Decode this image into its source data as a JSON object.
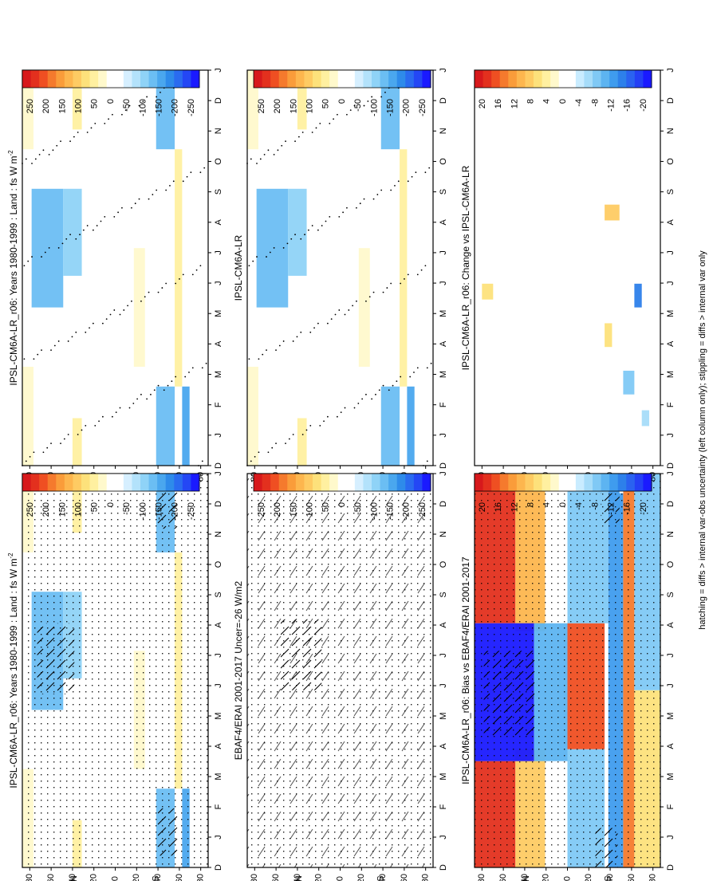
{
  "figure": {
    "footnote": "hatching = diffs > internal var-obs uncertainty (left column only); stippling = diffs > internal var only"
  },
  "colorbars": [
    {
      "id": "cb-abs",
      "ticks": [
        "250",
        "200",
        "150",
        "100",
        "50",
        "0",
        "-50",
        "-100",
        "-150",
        "-200",
        "-250"
      ]
    },
    {
      "id": "cb-diff",
      "ticks": [
        "20",
        "16",
        "12",
        "8",
        "4",
        "0",
        "-4",
        "-8",
        "-12",
        "-16",
        "-20"
      ]
    }
  ],
  "colors": {
    "strong_positive": "#d7191c",
    "moderate_positive": "#fdae61",
    "weak_positive": "#fff59d",
    "weak_negative": "#87ceeb",
    "moderate_negative": "#1e90ff",
    "strong_negative": "#1a1aff"
  },
  "axes": {
    "lat_ticks": [
      "80",
      "60",
      "40",
      "20",
      "0",
      "20",
      "40",
      "60",
      "80"
    ],
    "month_ticks": [
      "D",
      "J",
      "F",
      "M",
      "A",
      "M",
      "J",
      "J",
      "A",
      "S",
      "O",
      "N",
      "D",
      "J"
    ],
    "north_label": "N",
    "south_label": "S"
  },
  "chart_data": [
    {
      "type": "heatmap",
      "id": "panel-model-left",
      "title": "IPSL-CM6A-LR_r06: Years 1980-1999 : Land : fs W m",
      "title_superscript": "-2",
      "x": "month",
      "y": "latitude",
      "colorbar": "cb-abs",
      "clim": [
        -250,
        250
      ],
      "hatching": true,
      "stippling": true
    },
    {
      "type": "heatmap",
      "id": "panel-model-right",
      "title": "IPSL-CM6A-LR_r06: Years 1980-1999 : Land : fs W m",
      "title_superscript": "-2",
      "x": "month",
      "y": "latitude",
      "colorbar": "cb-abs",
      "clim": [
        -250,
        250
      ],
      "stippling": true
    },
    {
      "type": "heatmap",
      "id": "panel-obs",
      "title": "EBAF4/ERAI 2001-2017 Uncer=-26 W/m2",
      "x": "month",
      "y": "latitude",
      "colorbar": "cb-abs",
      "clim": [
        -250,
        250
      ],
      "hatching": true,
      "stippling": true
    },
    {
      "type": "heatmap",
      "id": "panel-model-mid-right",
      "title": "IPSL-CM6A-LR",
      "x": "month",
      "y": "latitude",
      "colorbar": "cb-abs",
      "clim": [
        -250,
        250
      ],
      "stippling": true
    },
    {
      "type": "heatmap",
      "id": "panel-bias",
      "title": "IPSL-CM6A-LR_r06: Bias vs EBAF4/ERAI 2001-2017",
      "x": "month",
      "y": "latitude",
      "colorbar": "cb-diff",
      "clim": [
        -20,
        20
      ],
      "hatching": true,
      "stippling": true
    },
    {
      "type": "heatmap",
      "id": "panel-change",
      "title": "IPSL-CM6A-LR_r06: Change vs IPSL-CM6A-LR",
      "x": "month",
      "y": "latitude",
      "colorbar": "cb-diff",
      "clim": [
        -20,
        20
      ],
      "stippling": true
    }
  ]
}
